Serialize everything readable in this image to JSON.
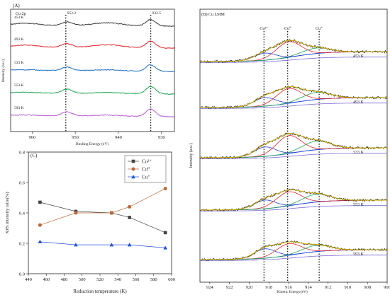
{
  "chart_data": [
    {
      "panel": "(A)",
      "type": "line",
      "inset_label": "Cu 2p",
      "xlabel": "Binding Energy (eV)",
      "ylabel": "Intensity (a.u.)",
      "xlim": [
        965,
        927
      ],
      "xticks": [
        "960",
        "950",
        "940",
        "930"
      ],
      "peak_labels": [
        {
          "x": 952.2,
          "text": "952.2"
        },
        {
          "x": 932.5,
          "text": "932.5"
        }
      ],
      "series": [
        {
          "name": "453 K",
          "color": "#3a3a3a"
        },
        {
          "name": "493 K",
          "color": "#e0262b"
        },
        {
          "name": "533 K",
          "color": "#1f6fc2"
        },
        {
          "name": "553 K",
          "color": "#1fa453"
        },
        {
          "name": "593 K",
          "color": "#b45ed0"
        }
      ]
    },
    {
      "panel": "(B)",
      "type": "line",
      "inset_label": "Cu LMM",
      "xlabel": "Kinetic Energy(eV)",
      "ylabel": "Intensity (a.u.)",
      "xlim": [
        925,
        906
      ],
      "xticks": [
        "924",
        "922",
        "920",
        "918",
        "916",
        "914",
        "912",
        "910",
        "908",
        "906"
      ],
      "peak_labels": [
        {
          "x": 918.5,
          "text": "Cu²⁺"
        },
        {
          "x": 916.1,
          "text": "Cu⁰"
        },
        {
          "x": 912.9,
          "text": "Cu⁺"
        }
      ],
      "series": [
        {
          "name": "453 K"
        },
        {
          "name": "493 K"
        },
        {
          "name": "533 K"
        },
        {
          "name": "553 K"
        },
        {
          "name": "593 K"
        }
      ],
      "component_colors": [
        "#1f3fd0",
        "#e0262b",
        "#1fa453",
        "#7b6bd6",
        "#d9b400",
        "#1a1a1a"
      ]
    },
    {
      "panel": "(C)",
      "type": "line",
      "xlabel": "Reduction temperature (K)",
      "ylabel": "XPS intensity ratio(%)",
      "x": [
        453,
        493,
        533,
        553,
        593
      ],
      "xlim": [
        440,
        600
      ],
      "ylim": [
        0.0,
        0.8
      ],
      "xticks": [
        "440",
        "460",
        "480",
        "500",
        "520",
        "540",
        "560",
        "580",
        "600"
      ],
      "yticks": [
        "0.0",
        "0.2",
        "0.4",
        "0.6",
        "0.8"
      ],
      "legend_position": "top-right",
      "series": [
        {
          "name": "Cu²⁺",
          "marker": "square",
          "color": "#444444",
          "values": [
            0.47,
            0.41,
            0.4,
            0.37,
            0.27
          ]
        },
        {
          "name": "Cu⁰",
          "marker": "circle",
          "color": "#b9693a",
          "values": [
            0.32,
            0.4,
            0.4,
            0.44,
            0.56
          ]
        },
        {
          "name": "Cu⁺",
          "marker": "triangle",
          "color": "#2450d8",
          "values": [
            0.21,
            0.19,
            0.19,
            0.19,
            0.17
          ]
        }
      ]
    }
  ]
}
